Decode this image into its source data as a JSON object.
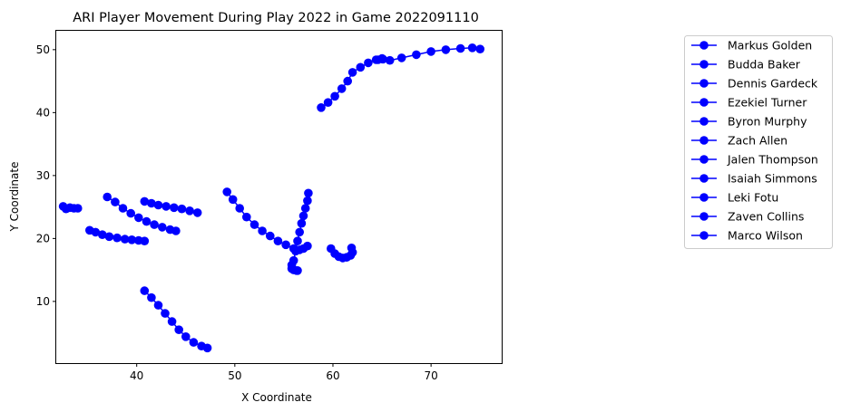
{
  "chart_data": {
    "type": "line",
    "title": "ARI Player Movement During Play 2022 in Game 2022091110",
    "xlabel": "X Coordinate",
    "ylabel": "Y Coordinate",
    "xlim": [
      31.8,
      77.2
    ],
    "ylim": [
      0.2,
      53.0
    ],
    "x_ticks": [
      40,
      50,
      60,
      70
    ],
    "y_ticks": [
      10,
      20,
      30,
      40,
      50
    ],
    "grid": false,
    "legend_position": "outside-right",
    "marker_color": "#0000ff",
    "series": [
      {
        "name": "Markus Golden",
        "x": [
          58.8,
          59.5,
          60.2,
          60.9,
          61.5,
          62.0,
          62.8,
          63.6,
          64.4,
          65.0,
          65.8,
          67.0,
          68.5,
          70.0,
          71.5,
          73.0,
          74.2,
          75.0
        ],
        "y": [
          40.8,
          41.6,
          42.6,
          43.8,
          45.0,
          46.4,
          47.2,
          47.9,
          48.4,
          48.6,
          48.3,
          48.7,
          49.2,
          49.7,
          50.0,
          50.2,
          50.3,
          50.1
        ]
      },
      {
        "name": "Budda Baker",
        "x": [
          32.5,
          32.8,
          33.2,
          33.6,
          34.0
        ],
        "y": [
          25.1,
          24.7,
          24.9,
          24.8,
          24.8
        ]
      },
      {
        "name": "Dennis Gardeck",
        "x": [
          35.2,
          35.8,
          36.5,
          37.2,
          38.0,
          38.8,
          39.5,
          40.2,
          40.8
        ],
        "y": [
          21.3,
          21.0,
          20.6,
          20.3,
          20.1,
          19.9,
          19.8,
          19.7,
          19.6
        ]
      },
      {
        "name": "Ezekiel Turner",
        "x": [
          37.0,
          37.8,
          38.6,
          39.4,
          40.2,
          41.0,
          41.8,
          42.6,
          43.4,
          44.0
        ],
        "y": [
          26.6,
          25.8,
          24.8,
          24.0,
          23.3,
          22.7,
          22.2,
          21.8,
          21.4,
          21.2
        ]
      },
      {
        "name": "Byron Murphy",
        "x": [
          40.8,
          41.5,
          42.2,
          43.0,
          43.8,
          44.6,
          45.4,
          46.2
        ],
        "y": [
          25.9,
          25.6,
          25.3,
          25.1,
          24.9,
          24.7,
          24.4,
          24.1
        ]
      },
      {
        "name": "Zach Allen",
        "x": [
          49.2,
          49.8,
          50.5,
          51.2,
          52.0,
          52.8,
          53.6,
          54.4,
          55.2,
          56.0,
          56.6,
          57.0,
          57.4
        ],
        "y": [
          27.4,
          26.2,
          24.8,
          23.4,
          22.2,
          21.2,
          20.4,
          19.6,
          19.0,
          18.4,
          18.2,
          18.4,
          18.8
        ]
      },
      {
        "name": "Jalen Thompson",
        "x": [
          55.8,
          56.0,
          56.2,
          56.4,
          56.6,
          56.8,
          57.0,
          57.2,
          57.4,
          57.5
        ],
        "y": [
          15.2,
          16.5,
          18.0,
          19.6,
          21.0,
          22.4,
          23.6,
          24.8,
          26.0,
          27.2
        ]
      },
      {
        "name": "Isaiah Simmons",
        "x": [
          40.8,
          41.5,
          42.2,
          42.9,
          43.6,
          44.3,
          45.0,
          45.8,
          46.6,
          47.2
        ],
        "y": [
          11.7,
          10.6,
          9.4,
          8.1,
          6.8,
          5.5,
          4.4,
          3.5,
          2.9,
          2.6
        ]
      },
      {
        "name": "Leki Fotu",
        "x": [
          59.8,
          60.2,
          60.6,
          61.0,
          61.4,
          61.8,
          62.0,
          61.9
        ],
        "y": [
          18.4,
          17.6,
          17.1,
          16.9,
          17.0,
          17.3,
          17.8,
          18.5
        ]
      },
      {
        "name": "Zaven Collins",
        "x": [
          55.8,
          56.0,
          56.3,
          56.4
        ],
        "y": [
          15.8,
          15.0,
          14.9,
          14.9
        ]
      },
      {
        "name": "Marco Wilson",
        "x": [
          64.6,
          65.1
        ],
        "y": [
          48.4,
          48.5
        ]
      }
    ]
  }
}
